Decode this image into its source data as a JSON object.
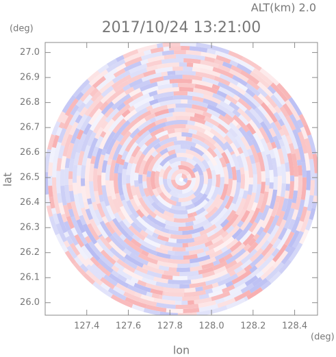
{
  "chart_data": {
    "type": "radar-field",
    "title": "2017/10/24 13:21:00",
    "annotation": "ALT(km) 2.0",
    "y_unit": "(deg)",
    "x_unit": "(deg)",
    "xlabel": "lon",
    "ylabel": "lat",
    "xlim": [
      127.2,
      128.51
    ],
    "ylim": [
      25.95,
      27.04
    ],
    "xticks": [
      127.4,
      127.6,
      127.8,
      {
        "value": 128,
        "label": "128.0"
      },
      128.2,
      128.4
    ],
    "yticks": [
      {
        "value": 26,
        "label": "26.0"
      },
      26.1,
      26.2,
      26.3,
      26.4,
      26.5,
      26.6,
      26.7,
      26.8,
      26.9,
      {
        "value": 27,
        "label": "27.0"
      }
    ],
    "colors": [
      "#f7a9ab",
      "#b4b8f2"
    ]
  }
}
